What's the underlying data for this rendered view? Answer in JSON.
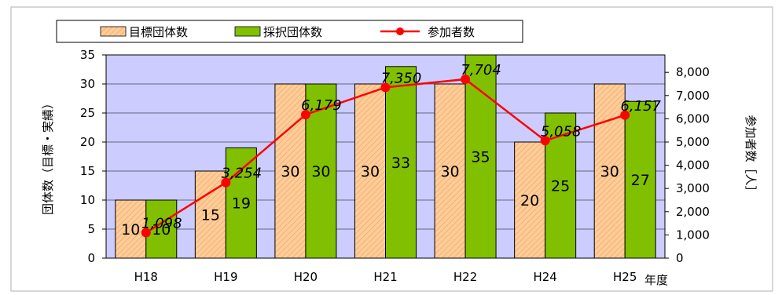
{
  "legend": {
    "target": "目標団体数",
    "adopted": "採択団体数",
    "participants": "参加者数"
  },
  "chart_data": {
    "type": "bar",
    "categories": [
      "H18",
      "H19",
      "H20",
      "H21",
      "H22",
      "H24",
      "H25"
    ],
    "series": [
      {
        "name": "目標団体数",
        "type": "bar",
        "axis": "left",
        "values": [
          10,
          15,
          30,
          30,
          30,
          20,
          30
        ]
      },
      {
        "name": "採択団体数",
        "type": "bar",
        "axis": "left",
        "values": [
          10,
          19,
          30,
          33,
          35,
          25,
          27
        ]
      },
      {
        "name": "参加者数",
        "type": "line",
        "axis": "right",
        "values": [
          1098,
          3254,
          6179,
          7350,
          7704,
          5058,
          6157
        ]
      }
    ],
    "bar_value_labels": {
      "target": [
        "10",
        "15",
        "30",
        "30",
        "30",
        "20",
        "30"
      ],
      "adopted": [
        "10",
        "19",
        "30",
        "33",
        "35",
        "25",
        "27"
      ]
    },
    "line_value_labels": [
      "1,098",
      "3,254",
      "6,179",
      "7,350",
      "7,704",
      "5,058",
      "6,157"
    ],
    "y_left": {
      "label": "団体数（目標・実績）",
      "ylim": [
        0,
        35
      ],
      "ticks": [
        "0",
        "5",
        "10",
        "15",
        "20",
        "25",
        "30",
        "35"
      ]
    },
    "y_right": {
      "label": "参加者数［人］",
      "ylim": [
        0,
        8750
      ],
      "ticks": [
        "0",
        "1,000",
        "2,000",
        "3,000",
        "4,000",
        "5,000",
        "6,000",
        "7,000",
        "8,000"
      ]
    },
    "xlabel": "年度",
    "legend_position": "top",
    "colors": {
      "target_bar": "#FFCC99",
      "target_hatch": "#E8A860",
      "adopted_bar": "#80C000",
      "line": "#FF0000",
      "plot_background": "#CCCCFF"
    }
  }
}
